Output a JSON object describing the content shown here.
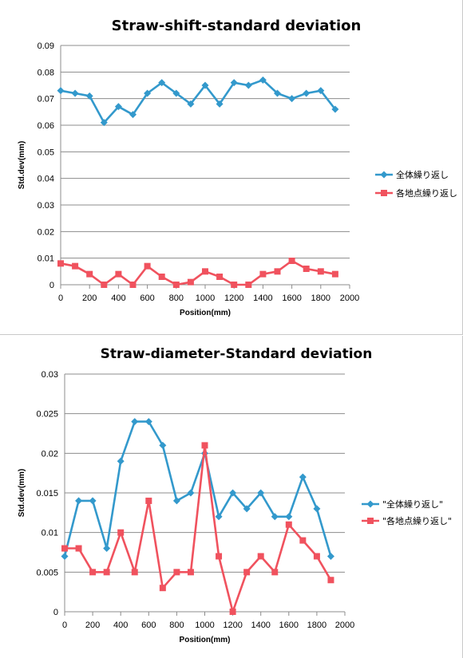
{
  "chart_data": [
    {
      "type": "line",
      "title": "Straw-shift-standard deviation",
      "xlabel": "Position(mm)",
      "ylabel": "Std.dev(mm)",
      "xlim": [
        0,
        2000
      ],
      "ylim": [
        0,
        0.09
      ],
      "xticks": [
        "0",
        "200",
        "400",
        "600",
        "800",
        "1000",
        "1200",
        "1400",
        "1600",
        "1800",
        "2000"
      ],
      "yticks": [
        "0",
        "0.01",
        "0.02",
        "0.03",
        "0.04",
        "0.05",
        "0.06",
        "0.07",
        "0.08",
        "0.09"
      ],
      "grid": true,
      "legend_position": "right",
      "x": [
        0,
        100,
        200,
        300,
        400,
        500,
        600,
        700,
        800,
        900,
        1000,
        1100,
        1200,
        1300,
        1400,
        1500,
        1600,
        1700,
        1800,
        1900
      ],
      "series": [
        {
          "name": "全体繰り返し",
          "color": "#3399cc",
          "marker": "diamond",
          "values": [
            0.073,
            0.072,
            0.071,
            0.061,
            0.067,
            0.064,
            0.072,
            0.076,
            0.072,
            0.068,
            0.075,
            0.068,
            0.076,
            0.075,
            0.077,
            0.072,
            0.07,
            0.072,
            0.073,
            0.066
          ]
        },
        {
          "name": "各地点繰り返し",
          "color": "#f0525e",
          "marker": "square",
          "values": [
            0.008,
            0.007,
            0.004,
            0.0,
            0.004,
            0.0,
            0.007,
            0.003,
            0.0,
            0.001,
            0.005,
            0.003,
            0.0,
            0.0,
            0.004,
            0.005,
            0.009,
            0.006,
            0.005,
            0.004
          ]
        }
      ]
    },
    {
      "type": "line",
      "title": "Straw-diameter-Standard deviation",
      "xlabel": "Position(mm)",
      "ylabel": "Std.dev(mm)",
      "xlim": [
        0,
        2000
      ],
      "ylim": [
        0,
        0.03
      ],
      "xticks": [
        "0",
        "200",
        "400",
        "600",
        "800",
        "1000",
        "1200",
        "1400",
        "1600",
        "1800",
        "2000"
      ],
      "yticks": [
        "0",
        "0.005",
        "0.01",
        "0.015",
        "0.02",
        "0.025",
        "0.03"
      ],
      "grid": true,
      "legend_position": "right",
      "x": [
        0,
        100,
        200,
        300,
        400,
        500,
        600,
        700,
        800,
        900,
        1000,
        1100,
        1200,
        1300,
        1400,
        1500,
        1600,
        1700,
        1800,
        1900
      ],
      "series": [
        {
          "name": "\"全体繰り返し\"",
          "color": "#3399cc",
          "marker": "diamond",
          "values": [
            0.007,
            0.014,
            0.014,
            0.008,
            0.019,
            0.024,
            0.024,
            0.021,
            0.014,
            0.015,
            0.02,
            0.012,
            0.015,
            0.013,
            0.015,
            0.012,
            0.012,
            0.017,
            0.013,
            0.007
          ]
        },
        {
          "name": "\"各地点繰り返し\"",
          "color": "#f0525e",
          "marker": "square",
          "values": [
            0.008,
            0.008,
            0.005,
            0.005,
            0.01,
            0.005,
            0.014,
            0.003,
            0.005,
            0.005,
            0.021,
            0.007,
            0.0,
            0.005,
            0.007,
            0.005,
            0.011,
            0.009,
            0.007,
            0.004
          ]
        }
      ]
    }
  ]
}
